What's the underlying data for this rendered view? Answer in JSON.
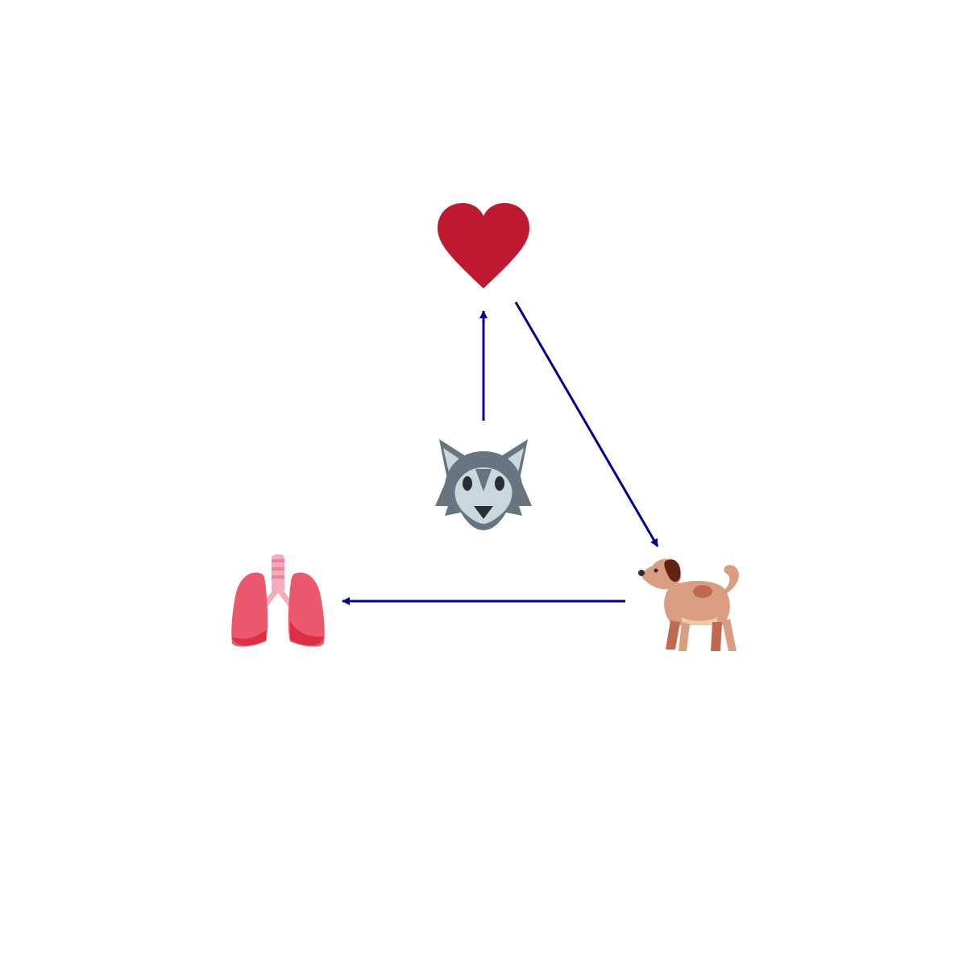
{
  "diagram": {
    "nodes": [
      {
        "id": "heart",
        "icon": "heart-icon"
      },
      {
        "id": "wolf",
        "icon": "wolf-icon"
      },
      {
        "id": "dog",
        "icon": "dog-icon"
      },
      {
        "id": "lungs",
        "icon": "lungs-icon"
      }
    ],
    "edges": [
      {
        "from": "wolf",
        "to": "heart"
      },
      {
        "from": "heart",
        "to": "dog"
      },
      {
        "from": "dog",
        "to": "lungs"
      }
    ],
    "colors": {
      "arrow": "#00008b",
      "heart": "#be1931",
      "wolf_dark": "#66757f",
      "wolf_light": "#ccd6dd",
      "dog_body": "#d99e82",
      "dog_dark": "#c1694f",
      "dog_ear": "#662113",
      "lungs_main": "#ea596e",
      "lungs_dark": "#dd2e44",
      "lungs_trachea": "#f4abba"
    }
  }
}
